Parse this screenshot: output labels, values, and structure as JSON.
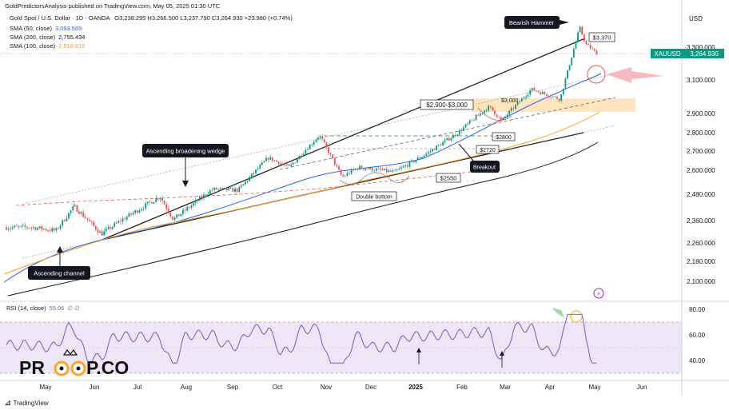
{
  "header": {
    "published": "GoldPredictorsAnalysis published on TradingView.com, May 05, 2025 01:30 UTC",
    "instrument": "Gold Spot / U.S. Dollar · 1D · OANDA",
    "ohlc": "O3,238.295  H3,266.500  L3,237.790  C3,264.930  +23.980 (+0.74%)"
  },
  "indicators": [
    {
      "label": "SMA (50, close)",
      "value": "3,093.565",
      "color": "#2962ff"
    },
    {
      "label": "SMA (200, close)",
      "value": "2,755.434",
      "color": "#131722"
    },
    {
      "label": "SMA (100, close)",
      "value": "2,918.815",
      "color": "#f7a21b"
    }
  ],
  "price_axis": {
    "currency": "USD",
    "ticks": [
      "3,300.000",
      "3,100.000",
      "2,900.000",
      "2,800.000",
      "2,700.000",
      "2,600.000",
      "2,480.000",
      "2,360.000",
      "2,260.000",
      "2,180.000",
      "2,100.000"
    ],
    "tick_values": [
      3300,
      3100,
      2900,
      2800,
      2700,
      2600,
      2480,
      2360,
      2260,
      2180,
      2100
    ],
    "last_symbol": "XAUUSD",
    "last_price": "3,264.930"
  },
  "rsi": {
    "label": "RSI (14, close)",
    "value": "55.06",
    "ticks": [
      "80.00",
      "60.00",
      "40.00"
    ],
    "tick_values": [
      80,
      60,
      40
    ],
    "upper_band": 70,
    "lower_band": 30
  },
  "time_axis": [
    "May",
    "Jun",
    "Jul",
    "Aug",
    "Sep",
    "Oct",
    "Nov",
    "Dec",
    "2025",
    "Feb",
    "Mar",
    "Apr",
    "May",
    "Jun"
  ],
  "annotations": {
    "bearish_hammer": "Bearish Hammer",
    "broadening_wedge": "Ascending broadening wedge",
    "ascending_channel": "Ascending channel",
    "double_bottom": "Double bottom",
    "breakout": "Breakout",
    "zone": "$2,900-$3,000",
    "level_3370": "$3,370",
    "level_3000": "$3,000",
    "level_2800": "$2800",
    "level_2720": "$2720",
    "level_2550": "$2550"
  },
  "watermark": {
    "left": "PR",
    "right": "P.CO"
  },
  "footer": {
    "brand": "TradingView",
    "logo": "tradingview-logo"
  },
  "colors": {
    "up": "#089981",
    "down": "#ef5350",
    "sma50": "#2962ff",
    "sma200": "#131722",
    "sma100": "#f7a21b",
    "rsi": "#7e57c2",
    "zone": "#ffe0b2",
    "arrow": "#f7a6b0"
  },
  "chart_data": {
    "type": "candlestick",
    "title": "Gold Spot / U.S. Dollar",
    "ylabel": "USD",
    "ylim": [
      2050,
      3420
    ],
    "x_range": [
      "2024-04-18",
      "2025-06-22"
    ],
    "close_series_sampled": {
      "dates": [
        "2024-04-22",
        "2024-05-08",
        "2024-05-20",
        "2024-06-07",
        "2024-06-20",
        "2024-07-16",
        "2024-07-25",
        "2024-08-20",
        "2024-09-06",
        "2024-09-26",
        "2024-10-10",
        "2024-10-30",
        "2024-11-14",
        "2024-11-25",
        "2024-12-19",
        "2025-01-10",
        "2025-01-30",
        "2025-02-20",
        "2025-02-28",
        "2025-03-20",
        "2025-04-08",
        "2025-04-21",
        "2025-04-25",
        "2025-05-02"
      ],
      "close": [
        2330,
        2315,
        2425,
        2300,
        2360,
        2470,
        2365,
        2505,
        2500,
        2665,
        2615,
        2785,
        2565,
        2615,
        2590,
        2690,
        2800,
        2940,
        2860,
        3045,
        2985,
        3420,
        3320,
        3265
      ]
    },
    "sma": [
      {
        "name": "SMA (50, close)",
        "last": 3093.565
      },
      {
        "name": "SMA (200, close)",
        "last": 2755.434
      },
      {
        "name": "SMA (100, close)",
        "last": 2918.815
      }
    ],
    "levels": [
      3370,
      3000,
      2800,
      2720,
      2550
    ],
    "zone": [
      2900,
      3000
    ],
    "rsi_last": 55.06
  }
}
